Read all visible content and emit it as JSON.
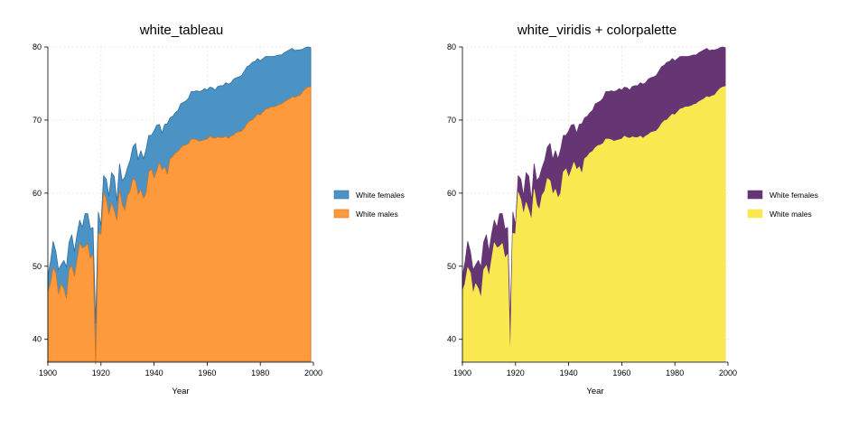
{
  "chart_data": [
    {
      "type": "area",
      "title": "white_tableau",
      "xlabel": "Year",
      "ylabel": "",
      "xlim": [
        1900,
        2000
      ],
      "ylim": [
        37,
        80
      ],
      "xticks": [
        1900,
        1920,
        1940,
        1960,
        1980,
        2000
      ],
      "yticks": [
        40,
        50,
        60,
        70,
        80
      ],
      "grid": true,
      "legend_position": "right",
      "series": [
        {
          "name": "White females",
          "color": "#4b93c4",
          "stroke": "#2e6f9e",
          "source": "females"
        },
        {
          "name": "White males",
          "color": "#fd9a3e",
          "stroke": "#d9741a",
          "source": "males"
        }
      ]
    },
    {
      "type": "area",
      "title": "white_viridis + colorpalette",
      "xlabel": "Year",
      "ylabel": "",
      "xlim": [
        1900,
        2000
      ],
      "ylim": [
        37,
        80
      ],
      "xticks": [
        1900,
        1920,
        1940,
        1960,
        1980,
        2000
      ],
      "yticks": [
        40,
        50,
        60,
        70,
        80
      ],
      "grid": true,
      "legend_position": "right",
      "series": [
        {
          "name": "White females",
          "color": "#653574",
          "stroke": "#653574",
          "source": "females"
        },
        {
          "name": "White males",
          "color": "#f9e84f",
          "stroke": "#f9e84f",
          "source": "males"
        }
      ]
    }
  ],
  "life_expectancy": {
    "x": [
      1900,
      1901,
      1902,
      1903,
      1904,
      1905,
      1906,
      1907,
      1908,
      1909,
      1910,
      1911,
      1912,
      1913,
      1914,
      1915,
      1916,
      1917,
      1918,
      1919,
      1920,
      1921,
      1922,
      1923,
      1924,
      1925,
      1926,
      1927,
      1928,
      1929,
      1930,
      1931,
      1932,
      1933,
      1934,
      1935,
      1936,
      1937,
      1938,
      1939,
      1940,
      1941,
      1942,
      1943,
      1944,
      1945,
      1946,
      1947,
      1948,
      1949,
      1950,
      1951,
      1952,
      1953,
      1954,
      1955,
      1956,
      1957,
      1958,
      1959,
      1960,
      1961,
      1962,
      1963,
      1964,
      1965,
      1966,
      1967,
      1968,
      1969,
      1970,
      1971,
      1972,
      1973,
      1974,
      1975,
      1976,
      1977,
      1978,
      1979,
      1980,
      1981,
      1982,
      1983,
      1984,
      1985,
      1986,
      1987,
      1988,
      1989,
      1990,
      1991,
      1992,
      1993,
      1994,
      1995,
      1996,
      1997,
      1998,
      1999
    ],
    "females": [
      48.7,
      50.6,
      53.4,
      52.0,
      49.5,
      50.2,
      50.8,
      49.9,
      53.3,
      54.3,
      52.0,
      54.4,
      56.3,
      55.3,
      57.2,
      57.2,
      55.1,
      55.3,
      42.2,
      57.4,
      55.6,
      62.4,
      61.9,
      59.6,
      62.8,
      62.3,
      58.9,
      64.0,
      61.7,
      62.2,
      63.5,
      64.5,
      66.3,
      66.8,
      64.6,
      65.8,
      64.7,
      66.0,
      67.9,
      67.9,
      68.5,
      69.3,
      69.4,
      68.2,
      69.4,
      69.5,
      70.3,
      70.5,
      71.0,
      71.3,
      72.2,
      72.4,
      72.6,
      73.0,
      73.9,
      73.9,
      74.0,
      73.9,
      74.0,
      74.3,
      74.1,
      74.5,
      74.4,
      74.1,
      74.6,
      74.7,
      74.7,
      75.1,
      74.9,
      75.1,
      75.6,
      75.8,
      75.9,
      76.1,
      76.7,
      77.3,
      77.5,
      77.9,
      78.0,
      78.4,
      78.1,
      78.4,
      78.7,
      78.7,
      78.7,
      78.7,
      78.8,
      78.9,
      78.9,
      79.2,
      79.4,
      79.6,
      79.8,
      79.5,
      79.6,
      79.6,
      79.7,
      79.9,
      80.0,
      79.9
    ],
    "males": [
      46.6,
      47.6,
      49.8,
      49.1,
      46.2,
      47.6,
      46.9,
      45.6,
      49.5,
      50.1,
      48.6,
      50.9,
      53.2,
      52.5,
      52.7,
      53.1,
      51.1,
      51.6,
      36.6,
      54.5,
      54.4,
      60.1,
      59.1,
      57.1,
      58.7,
      57.6,
      56.3,
      60.5,
      58.4,
      57.7,
      59.7,
      60.3,
      62.0,
      61.7,
      59.8,
      60.5,
      59.3,
      60.0,
      62.9,
      63.3,
      62.1,
      63.1,
      64.2,
      63.2,
      63.6,
      62.6,
      64.7,
      65.0,
      65.5,
      65.7,
      66.2,
      66.5,
      66.6,
      66.8,
      67.4,
      67.4,
      67.3,
      67.1,
      67.2,
      67.3,
      67.4,
      67.8,
      67.6,
      67.5,
      67.7,
      67.6,
      67.6,
      67.8,
      67.5,
      67.8,
      68.0,
      68.3,
      68.4,
      68.5,
      68.9,
      69.5,
      69.9,
      70.0,
      70.4,
      70.8,
      70.7,
      71.1,
      71.5,
      71.6,
      71.8,
      71.8,
      71.9,
      72.1,
      72.2,
      72.5,
      72.7,
      72.9,
      73.2,
      73.1,
      73.3,
      73.4,
      73.9,
      74.3,
      74.5,
      74.6
    ]
  }
}
